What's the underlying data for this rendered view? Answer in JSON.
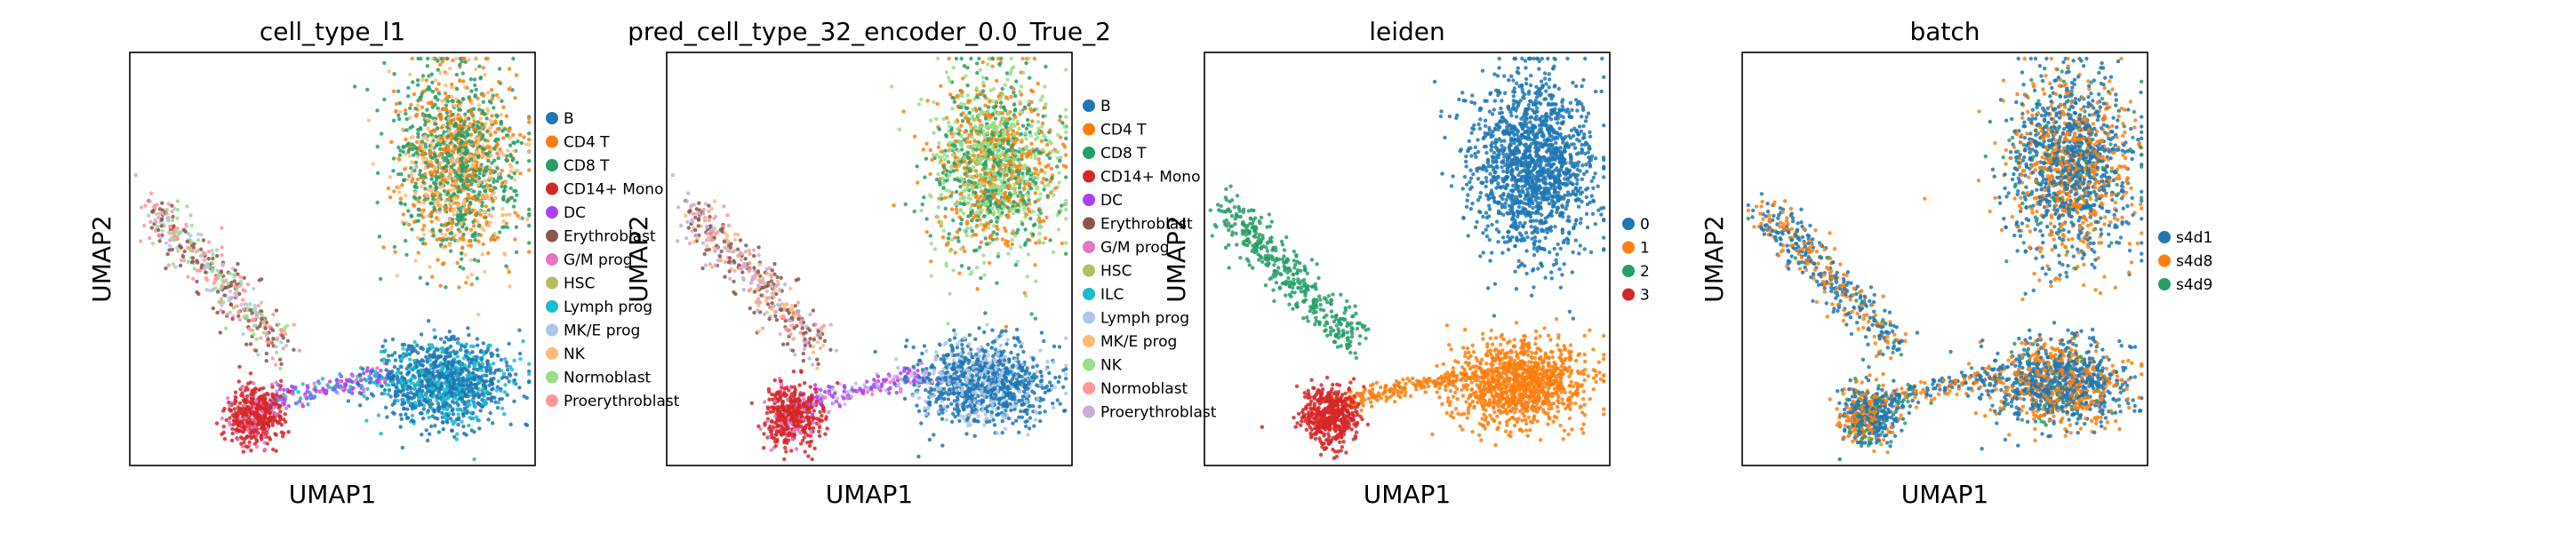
{
  "chart_data": [
    {
      "type": "scatter",
      "title": "cell_type_l1",
      "xlabel": "UMAP1",
      "ylabel": "UMAP2",
      "legend_position": "right",
      "legend": [
        {
          "label": "B",
          "color": "#1f77b4"
        },
        {
          "label": "CD4 T",
          "color": "#ff7f0e"
        },
        {
          "label": "CD8 T",
          "color": "#279e68"
        },
        {
          "label": "CD14+ Mono",
          "color": "#d62728"
        },
        {
          "label": "DC",
          "color": "#aa40fc"
        },
        {
          "label": "Erythroblast",
          "color": "#8c564b"
        },
        {
          "label": "G/M prog",
          "color": "#e377c2"
        },
        {
          "label": "HSC",
          "color": "#b5bd61"
        },
        {
          "label": "Lymph prog",
          "color": "#17becf"
        },
        {
          "label": "MK/E prog",
          "color": "#aec7e8"
        },
        {
          "label": "NK",
          "color": "#ffbb78"
        },
        {
          "label": "Normoblast",
          "color": "#98df8a"
        },
        {
          "label": "Proerythroblast",
          "color": "#ff9896"
        }
      ]
    },
    {
      "type": "scatter",
      "title": "pred_cell_type_32_encoder_0.0_True_2",
      "xlabel": "UMAP1",
      "ylabel": "UMAP2",
      "legend_position": "right",
      "legend": [
        {
          "label": "B",
          "color": "#1f77b4"
        },
        {
          "label": "CD4 T",
          "color": "#ff7f0e"
        },
        {
          "label": "CD8 T",
          "color": "#279e68"
        },
        {
          "label": "CD14+ Mono",
          "color": "#d62728"
        },
        {
          "label": "DC",
          "color": "#aa40fc"
        },
        {
          "label": "Erythroblast",
          "color": "#8c564b"
        },
        {
          "label": "G/M prog",
          "color": "#e377c2"
        },
        {
          "label": "HSC",
          "color": "#b5bd61"
        },
        {
          "label": "ILC",
          "color": "#17becf"
        },
        {
          "label": "Lymph prog",
          "color": "#aec7e8"
        },
        {
          "label": "MK/E prog",
          "color": "#ffbb78"
        },
        {
          "label": "NK",
          "color": "#98df8a"
        },
        {
          "label": "Normoblast",
          "color": "#ff9896"
        },
        {
          "label": "Proerythroblast",
          "color": "#c5b0d5"
        }
      ]
    },
    {
      "type": "scatter",
      "title": "leiden",
      "xlabel": "UMAP1",
      "ylabel": "UMAP2",
      "legend_position": "right",
      "legend": [
        {
          "label": "0",
          "color": "#1f77b4"
        },
        {
          "label": "1",
          "color": "#ff7f0e"
        },
        {
          "label": "2",
          "color": "#279e68"
        },
        {
          "label": "3",
          "color": "#d62728"
        }
      ]
    },
    {
      "type": "scatter",
      "title": "batch",
      "xlabel": "UMAP1",
      "ylabel": "UMAP2",
      "legend_position": "right",
      "legend": [
        {
          "label": "s4d1",
          "color": "#1f77b4"
        },
        {
          "label": "s4d8",
          "color": "#ff7f0e"
        },
        {
          "label": "s4d9",
          "color": "#279e68"
        }
      ]
    }
  ]
}
